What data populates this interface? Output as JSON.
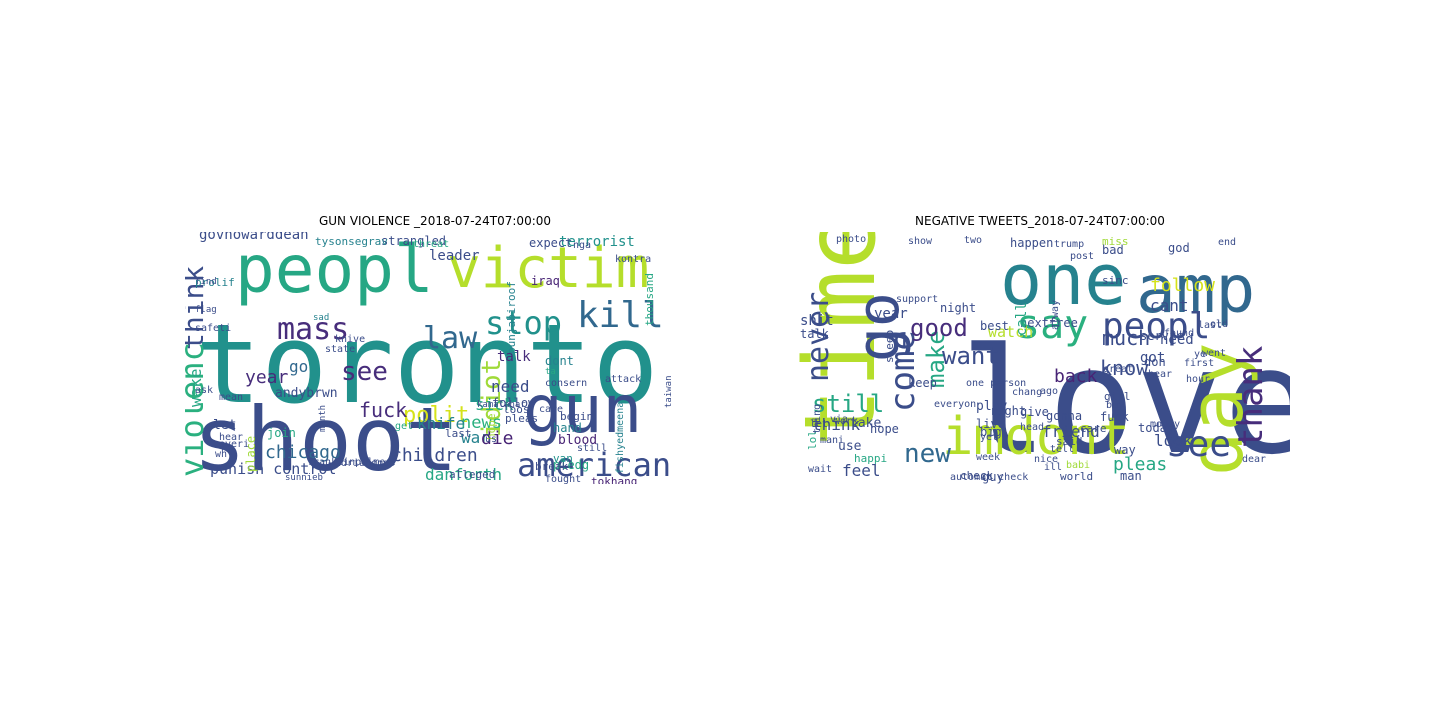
{
  "figure": {
    "panels": [
      {
        "title": "GUN VIOLENCE _2018-07-24T07:00:00",
        "words": [
          {
            "text": "toronto",
            "color": "#21918c"
          },
          {
            "text": "shoot",
            "color": "#3b4d8a"
          },
          {
            "text": "peopl",
            "color": "#26a784"
          },
          {
            "text": "victim",
            "color": "#b5de2b"
          },
          {
            "text": "gun",
            "color": "#3b4d8a"
          },
          {
            "text": "kill",
            "color": "#31688e"
          },
          {
            "text": "mass",
            "color": "#472d7b"
          },
          {
            "text": "law",
            "color": "#31688e"
          },
          {
            "text": "stop",
            "color": "#21918c"
          },
          {
            "text": "american",
            "color": "#3b4d8a"
          },
          {
            "text": "think",
            "color": "#3b4d8a"
          },
          {
            "text": "violenc",
            "color": "#2ab07f"
          },
          {
            "text": "see",
            "color": "#472d7b"
          },
          {
            "text": "polit",
            "color": "#d5e21a"
          },
          {
            "text": "idiot",
            "color": "#a0da39"
          },
          {
            "text": "chicago",
            "color": "#31688e"
          },
          {
            "text": "children",
            "color": "#3b4d8a"
          },
          {
            "text": "punish control",
            "color": "#3b4d8a"
          },
          {
            "text": "danforth",
            "color": "#26a784"
          },
          {
            "text": "news",
            "color": "#2ab07f"
          },
          {
            "text": "war",
            "color": "#26828e"
          },
          {
            "text": "knife",
            "color": "#26828e"
          },
          {
            "text": "fuck",
            "color": "#472d7b"
          },
          {
            "text": "wake",
            "color": "#26a784"
          },
          {
            "text": "sick",
            "color": "#26a784"
          },
          {
            "text": "die",
            "color": "#482475"
          },
          {
            "text": "need",
            "color": "#3b4d8a"
          },
          {
            "text": "year",
            "color": "#472d7b"
          },
          {
            "text": "govhowarddean",
            "color": "#3b4d8a"
          },
          {
            "text": "go",
            "color": "#31688e"
          },
          {
            "text": "let",
            "color": "#3b4d8a"
          },
          {
            "text": "place",
            "color": "#a0da39"
          },
          {
            "text": "hand",
            "color": "#26828e"
          },
          {
            "text": "blood",
            "color": "#482475"
          },
          {
            "text": "leader",
            "color": "#3b4d8a"
          },
          {
            "text": "terrorist",
            "color": "#21918c"
          },
          {
            "text": "andybrwn",
            "color": "#3b4d8a"
          },
          {
            "text": "strangled",
            "color": "#3b4d8a"
          },
          {
            "text": "tysonsegrav",
            "color": "#26828e"
          },
          {
            "text": "begin",
            "color": "#3b4d8a"
          },
          {
            "text": "pledg",
            "color": "#26a784"
          },
          {
            "text": "break",
            "color": "#3b4d8a"
          },
          {
            "text": "alleged",
            "color": "#3b4d8a"
          },
          {
            "text": "tokhang",
            "color": "#482475"
          },
          {
            "text": "iraq",
            "color": "#482475"
          },
          {
            "text": "dont",
            "color": "#26828e"
          },
          {
            "text": "talk",
            "color": "#472d7b"
          },
          {
            "text": "join",
            "color": "#26a784"
          },
          {
            "text": "mean",
            "color": "#3b4d8a"
          },
          {
            "text": "month",
            "color": "#3b4d8a"
          },
          {
            "text": "hope",
            "color": "#a0da39"
          },
          {
            "text": "expect",
            "color": "#3b4d8a"
          },
          {
            "text": "follow",
            "color": "#3b4d8a"
          },
          {
            "text": "van",
            "color": "#21918c"
          },
          {
            "text": "franklinpalmer?",
            "color": "#3b4d8a"
          },
          {
            "text": "punjabiroof",
            "color": "#26828e"
          },
          {
            "text": "loos",
            "color": "#3b4d8a"
          },
          {
            "text": "pleas",
            "color": "#3b4d8a"
          },
          {
            "text": "everi",
            "color": "#3b4d8a"
          },
          {
            "text": "care",
            "color": "#3b4d8a"
          },
          {
            "text": "hear",
            "color": "#3b4d8a"
          },
          {
            "text": "state",
            "color": "#3b4d8a"
          },
          {
            "text": "ask",
            "color": "#3b4d8a"
          },
          {
            "text": "prolif",
            "color": "#26828e"
          },
          {
            "text": "safeti",
            "color": "#3b4d8a"
          },
          {
            "text": "knive",
            "color": "#3b4d8a"
          },
          {
            "text": "threat",
            "color": "#26a784"
          },
          {
            "text": "sad",
            "color": "#26828e"
          },
          {
            "text": "fishyedmeena",
            "color": "#26828e"
          },
          {
            "text": "adrianoooo",
            "color": "#3b4d8a"
          },
          {
            "text": "sunnieb",
            "color": "#3b4d8a"
          },
          {
            "text": "thousand",
            "color": "#26a784"
          },
          {
            "text": "kontra",
            "color": "#3b4d8a"
          },
          {
            "text": "attack",
            "color": "#3b4d8a"
          },
          {
            "text": "consern",
            "color": "#3b4d8a"
          },
          {
            "text": "kamalahar",
            "color": "#3b4d8a"
          },
          {
            "text": "last",
            "color": "#3b4d8a"
          },
          {
            "text": "ta",
            "color": "#26a784"
          },
          {
            "text": "us",
            "color": "#3b4d8a"
          },
          {
            "text": "still",
            "color": "#3b4d8a"
          },
          {
            "text": "fought",
            "color": "#3b4d8a"
          },
          {
            "text": "find",
            "color": "#3b4d8a"
          },
          {
            "text": "get",
            "color": "#26a784"
          },
          {
            "text": "wh",
            "color": "#3b4d8a"
          },
          {
            "text": "taiwan",
            "color": "#3b4d8a"
          },
          {
            "text": "nga",
            "color": "#3b4d8a"
          },
          {
            "text": "flag",
            "color": "#3b4d8a"
          }
        ]
      },
      {
        "title": "NEGATIVE TWEETS_2018-07-24T07:00:00",
        "words": [
          {
            "text": "love",
            "color": "#3b4d8a"
          },
          {
            "text": "time",
            "color": "#b5de2b"
          },
          {
            "text": "one",
            "color": "#26828e"
          },
          {
            "text": "amp",
            "color": "#31688e"
          },
          {
            "text": "day",
            "color": "#b5de2b"
          },
          {
            "text": "go",
            "color": "#3b4d8a"
          },
          {
            "text": "imdont",
            "color": "#b5de2b"
          },
          {
            "text": "say",
            "color": "#2ab07f"
          },
          {
            "text": "peopl",
            "color": "#3b4d8a"
          },
          {
            "text": "thank",
            "color": "#472d7b"
          },
          {
            "text": "never",
            "color": "#3b4d8a"
          },
          {
            "text": "come",
            "color": "#3b4d8a"
          },
          {
            "text": "see",
            "color": "#3b4d8a"
          },
          {
            "text": "new",
            "color": "#31688e"
          },
          {
            "text": "make",
            "color": "#26a784"
          },
          {
            "text": "want",
            "color": "#3b4d8a"
          },
          {
            "text": "good",
            "color": "#472d7b"
          },
          {
            "text": "still",
            "color": "#26a784"
          },
          {
            "text": "know",
            "color": "#3b4d8a"
          },
          {
            "text": "much",
            "color": "#3b4d8a"
          },
          {
            "text": "follow",
            "color": "#d5e21a"
          },
          {
            "text": "cant",
            "color": "#3b4d8a"
          },
          {
            "text": "back",
            "color": "#482475"
          },
          {
            "text": "think",
            "color": "#3b4d8a"
          },
          {
            "text": "feel",
            "color": "#3b4d8a"
          },
          {
            "text": "pleas",
            "color": "#26a784"
          },
          {
            "text": "look",
            "color": "#3b4d8a"
          },
          {
            "text": "friend",
            "color": "#3b4d8a"
          },
          {
            "text": "today",
            "color": "#3b4d8a"
          },
          {
            "text": "watch",
            "color": "#b5de2b"
          },
          {
            "text": "year",
            "color": "#3b4d8a"
          },
          {
            "text": "nextfree",
            "color": "#3b4d8a"
          },
          {
            "text": "need",
            "color": "#3b4d8a"
          },
          {
            "text": "call",
            "color": "#26a784"
          },
          {
            "text": "got",
            "color": "#3b4d8a"
          },
          {
            "text": "don",
            "color": "#3b4d8a"
          },
          {
            "text": "god",
            "color": "#3b4d8a"
          },
          {
            "text": "shit",
            "color": "#3b4d8a"
          },
          {
            "text": "talk",
            "color": "#3b4d8a"
          },
          {
            "text": "happen",
            "color": "#3b4d8a"
          },
          {
            "text": "miss",
            "color": "#a0da39"
          },
          {
            "text": "bad",
            "color": "#3b4d8a"
          },
          {
            "text": "best",
            "color": "#3b4d8a"
          },
          {
            "text": "night",
            "color": "#3b4d8a"
          },
          {
            "text": "sleep",
            "color": "#3b4d8a"
          },
          {
            "text": "keep",
            "color": "#3b4d8a"
          },
          {
            "text": "hope",
            "color": "#3b4d8a"
          },
          {
            "text": "take",
            "color": "#3b4d8a"
          },
          {
            "text": "use",
            "color": "#3b4d8a"
          },
          {
            "text": "way",
            "color": "#3b4d8a"
          },
          {
            "text": "man",
            "color": "#3b4d8a"
          },
          {
            "text": "girl",
            "color": "#3b4d8a"
          },
          {
            "text": "gonna",
            "color": "#3b4d8a"
          },
          {
            "text": "play",
            "color": "#3b4d8a"
          },
          {
            "text": "guy",
            "color": "#3b4d8a"
          },
          {
            "text": "give",
            "color": "#3b4d8a"
          },
          {
            "text": "live",
            "color": "#3b4d8a"
          },
          {
            "text": "tell",
            "color": "#3b4d8a"
          },
          {
            "text": "lol",
            "color": "#26a784"
          },
          {
            "text": "happi",
            "color": "#26a784"
          },
          {
            "text": "big",
            "color": "#3b4d8a"
          },
          {
            "text": "right",
            "color": "#3b4d8a"
          },
          {
            "text": "servic",
            "color": "#3b4d8a"
          },
          {
            "text": "sinc",
            "color": "#3b4d8a"
          },
          {
            "text": "fuck",
            "color": "#3b4d8a"
          },
          {
            "text": "check",
            "color": "#3b4d8a"
          },
          {
            "text": "world",
            "color": "#3b4d8a"
          },
          {
            "text": "babi",
            "color": "#a0da39"
          },
          {
            "text": "automat check",
            "color": "#3b4d8a"
          },
          {
            "text": "photo",
            "color": "#3b4d8a"
          },
          {
            "text": "show",
            "color": "#3b4d8a"
          },
          {
            "text": "end",
            "color": "#3b4d8a"
          },
          {
            "text": "said",
            "color": "#3b4d8a"
          },
          {
            "text": "care",
            "color": "#3b4d8a"
          },
          {
            "text": "hear",
            "color": "#3b4d8a"
          },
          {
            "text": "hour",
            "color": "#3b4d8a"
          },
          {
            "text": "buy",
            "color": "#3b4d8a"
          },
          {
            "text": "trump",
            "color": "#3b4d8a"
          },
          {
            "text": "money",
            "color": "#3b4d8a"
          },
          {
            "text": "ago",
            "color": "#3b4d8a"
          },
          {
            "text": "nice",
            "color": "#3b4d8a"
          },
          {
            "text": "ill",
            "color": "#3b4d8a"
          },
          {
            "text": "thing",
            "color": "#3b4d8a"
          },
          {
            "text": "let",
            "color": "#3b4d8a"
          },
          {
            "text": "support",
            "color": "#3b4d8a"
          },
          {
            "text": "alway",
            "color": "#3b4d8a"
          },
          {
            "text": "two",
            "color": "#3b4d8a"
          },
          {
            "text": "post",
            "color": "#3b4d8a"
          },
          {
            "text": "great",
            "color": "#3b4d8a"
          },
          {
            "text": "mani",
            "color": "#3b4d8a"
          },
          {
            "text": "dear",
            "color": "#3b4d8a"
          },
          {
            "text": "everyon",
            "color": "#3b4d8a"
          },
          {
            "text": "wait",
            "color": "#3b4d8a"
          },
          {
            "text": "ye",
            "color": "#3b4d8a"
          },
          {
            "text": "work",
            "color": "#3b4d8a"
          },
          {
            "text": "first",
            "color": "#3b4d8a"
          },
          {
            "text": "went",
            "color": "#3b4d8a"
          },
          {
            "text": "found",
            "color": "#3b4d8a"
          },
          {
            "text": "one person",
            "color": "#3b4d8a"
          },
          {
            "text": "head",
            "color": "#3b4d8a"
          },
          {
            "text": "week",
            "color": "#3b4d8a"
          },
          {
            "text": "chang",
            "color": "#3b4d8a"
          },
          {
            "text": "via",
            "color": "#3b4d8a"
          },
          {
            "text": "yet",
            "color": "#3b4d8a"
          },
          {
            "text": "last",
            "color": "#3b4d8a"
          },
          {
            "text": "old",
            "color": "#3b4d8a"
          }
        ]
      }
    ]
  }
}
